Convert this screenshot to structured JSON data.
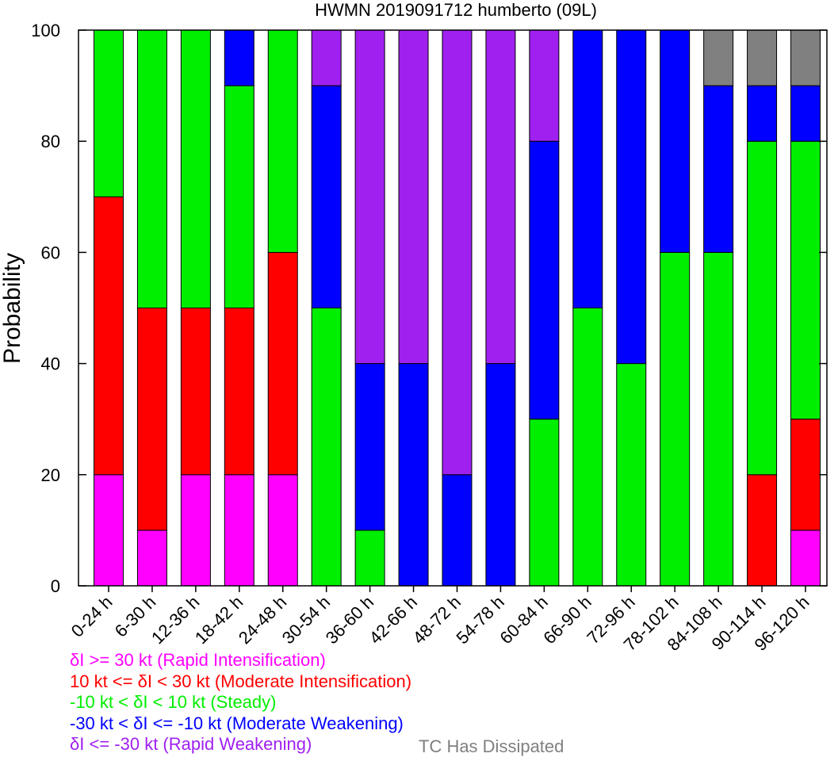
{
  "chart_data": {
    "type": "bar",
    "stacked": true,
    "title": "HWMN 2019091712 humberto (09L)",
    "xlabel": "",
    "ylabel": "Probability",
    "ylim": [
      0,
      100
    ],
    "yticks": [
      0,
      20,
      40,
      60,
      80,
      100
    ],
    "grid": false,
    "legend_position": "bottom",
    "categories": [
      "0-24 h",
      "6-30 h",
      "12-36 h",
      "18-42 h",
      "24-48 h",
      "30-54 h",
      "36-60 h",
      "42-66 h",
      "48-72 h",
      "54-78 h",
      "60-84 h",
      "66-90 h",
      "72-96 h",
      "78-102 h",
      "84-108 h",
      "90-114 h",
      "96-120 h"
    ],
    "series": [
      {
        "name": "δI >= 30 kt (Rapid Intensification)",
        "color": "#ff00ff",
        "values": [
          20,
          10,
          20,
          20,
          20,
          0,
          0,
          0,
          0,
          0,
          0,
          0,
          0,
          0,
          0,
          0,
          10
        ]
      },
      {
        "name": "10 kt <= δI < 30 kt (Moderate Intensification)",
        "color": "#ff0000",
        "values": [
          50,
          40,
          30,
          30,
          40,
          0,
          0,
          0,
          0,
          0,
          0,
          0,
          0,
          0,
          0,
          20,
          20
        ]
      },
      {
        "name": "-10 kt < δI < 10 kt (Steady)",
        "color": "#00ee00",
        "values": [
          30,
          50,
          50,
          40,
          40,
          50,
          10,
          0,
          0,
          0,
          30,
          50,
          40,
          60,
          60,
          60,
          50
        ]
      },
      {
        "name": "-30 kt < δI <= -10 kt (Moderate Weakening)",
        "color": "#0000ff",
        "values": [
          0,
          0,
          0,
          10,
          0,
          40,
          30,
          40,
          20,
          40,
          50,
          50,
          60,
          40,
          30,
          10,
          10
        ]
      },
      {
        "name": "δI <= -30 kt (Rapid Weakening)",
        "color": "#a020f0",
        "values": [
          0,
          0,
          0,
          0,
          0,
          10,
          60,
          60,
          80,
          60,
          20,
          0,
          0,
          0,
          0,
          0,
          0
        ]
      },
      {
        "name": "TC Has Dissipated",
        "color": "#808080",
        "values": [
          0,
          0,
          0,
          0,
          0,
          0,
          0,
          0,
          0,
          0,
          0,
          0,
          0,
          0,
          10,
          10,
          10
        ]
      }
    ]
  }
}
